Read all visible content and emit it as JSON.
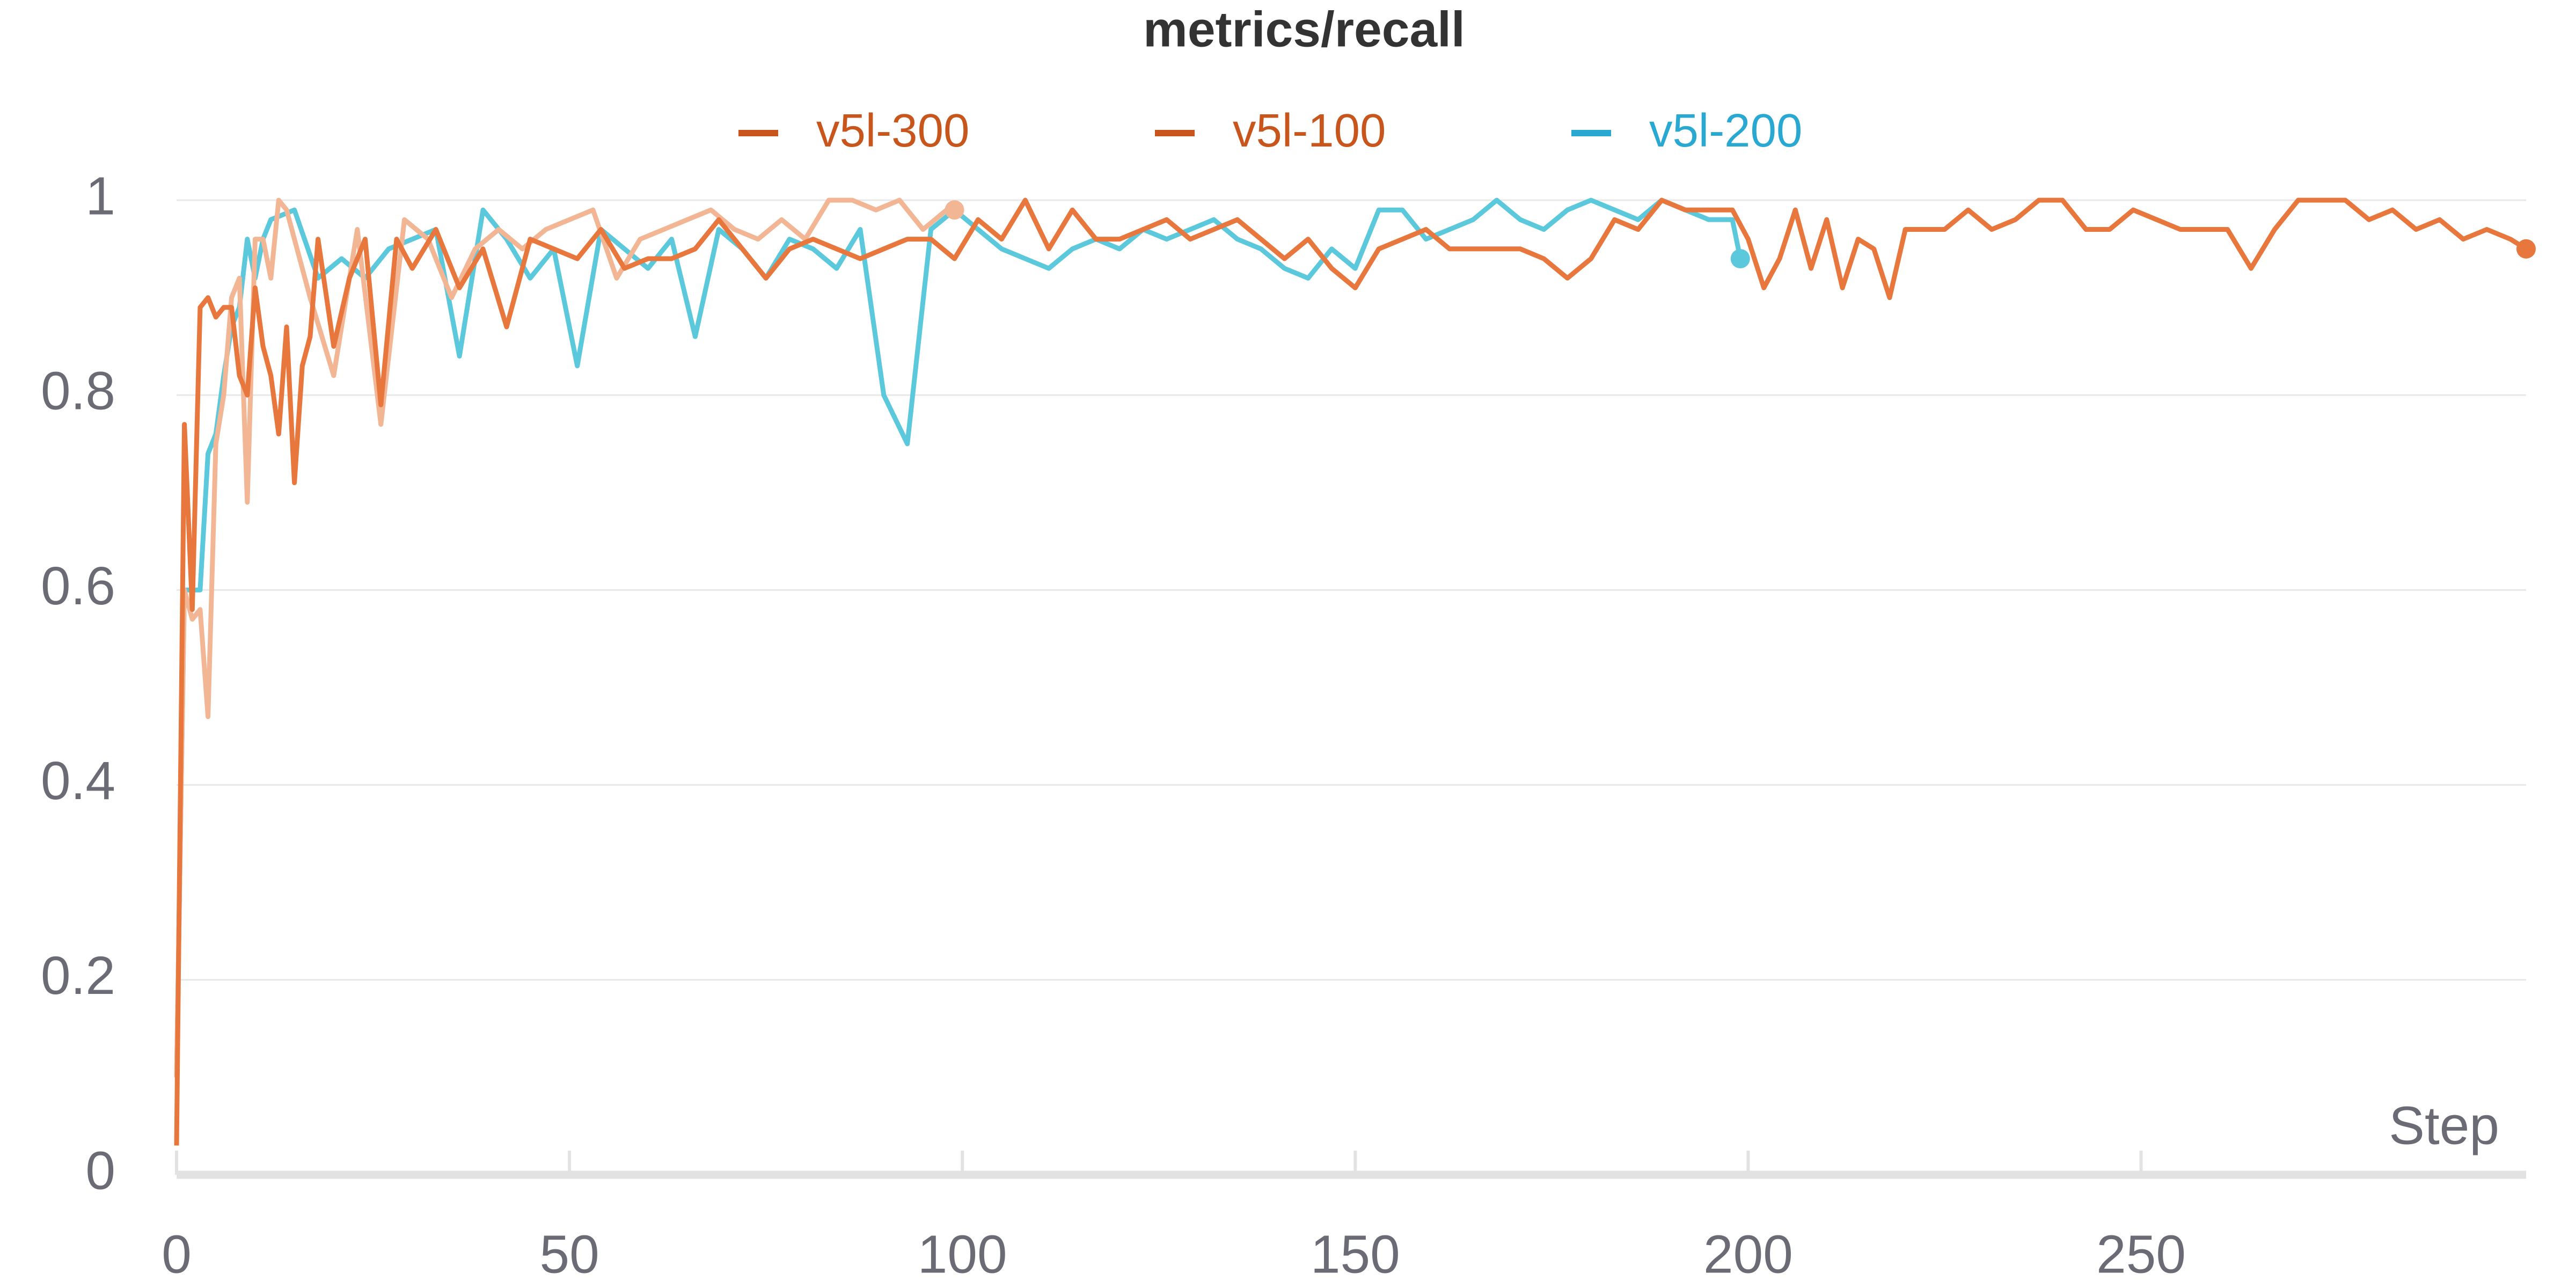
{
  "chart_data": {
    "type": "line",
    "title": "metrics/recall",
    "xlabel": "Step",
    "xlim": [
      0,
      299
    ],
    "ylim": [
      0,
      1
    ],
    "xticks": [
      0,
      50,
      100,
      150,
      200,
      250
    ],
    "yticks": [
      0,
      0.2,
      0.4,
      0.6,
      0.8,
      1
    ],
    "grid": true,
    "legend": "top",
    "series": [
      {
        "name": "v5l-300",
        "color": "#e8773e",
        "legend_color": "#c8561c",
        "x": [
          0,
          1,
          2,
          3,
          4,
          5,
          6,
          7,
          8,
          9,
          10,
          11,
          12,
          13,
          14,
          15,
          16,
          17,
          18,
          20,
          22,
          24,
          26,
          28,
          30,
          33,
          36,
          39,
          42,
          45,
          48,
          51,
          54,
          57,
          60,
          63,
          66,
          69,
          72,
          75,
          78,
          81,
          84,
          87,
          90,
          93,
          96,
          99,
          102,
          105,
          108,
          111,
          114,
          117,
          120,
          123,
          126,
          129,
          132,
          135,
          138,
          141,
          144,
          147,
          150,
          153,
          156,
          159,
          162,
          165,
          168,
          171,
          174,
          177,
          180,
          183,
          186,
          189,
          192,
          195,
          198,
          200,
          202,
          204,
          206,
          208,
          210,
          212,
          214,
          216,
          218,
          220,
          222,
          225,
          228,
          231,
          234,
          237,
          240,
          243,
          246,
          249,
          252,
          255,
          258,
          261,
          264,
          267,
          270,
          273,
          276,
          279,
          282,
          285,
          288,
          291,
          294,
          297,
          299
        ],
        "values": [
          0.03,
          0.77,
          0.58,
          0.89,
          0.9,
          0.88,
          0.89,
          0.89,
          0.82,
          0.8,
          0.91,
          0.85,
          0.82,
          0.76,
          0.87,
          0.71,
          0.83,
          0.86,
          0.96,
          0.85,
          0.92,
          0.96,
          0.79,
          0.96,
          0.93,
          0.97,
          0.91,
          0.95,
          0.87,
          0.96,
          0.95,
          0.94,
          0.97,
          0.93,
          0.94,
          0.94,
          0.95,
          0.98,
          0.95,
          0.92,
          0.95,
          0.96,
          0.95,
          0.94,
          0.95,
          0.96,
          0.96,
          0.94,
          0.98,
          0.96,
          1.0,
          0.95,
          0.99,
          0.96,
          0.96,
          0.97,
          0.98,
          0.96,
          0.97,
          0.98,
          0.96,
          0.94,
          0.96,
          0.93,
          0.91,
          0.95,
          0.96,
          0.97,
          0.95,
          0.95,
          0.95,
          0.95,
          0.94,
          0.92,
          0.94,
          0.98,
          0.97,
          1.0,
          0.99,
          0.99,
          0.99,
          0.96,
          0.91,
          0.94,
          0.99,
          0.93,
          0.98,
          0.91,
          0.96,
          0.95,
          0.9,
          0.97,
          0.97,
          0.97,
          0.99,
          0.97,
          0.98,
          1.0,
          1.0,
          0.97,
          0.97,
          0.99,
          0.98,
          0.97,
          0.97,
          0.97,
          0.93,
          0.97,
          1.0,
          1.0,
          1.0,
          0.98,
          0.99,
          0.97,
          0.98,
          0.96,
          0.97,
          0.96,
          0.95
        ]
      },
      {
        "name": "v5l-100",
        "color": "#f2b695",
        "legend_color": "#c8561c",
        "x": [
          0,
          1,
          2,
          3,
          4,
          5,
          6,
          7,
          8,
          9,
          10,
          11,
          12,
          13,
          14,
          17,
          20,
          23,
          26,
          29,
          32,
          35,
          38,
          41,
          44,
          47,
          50,
          53,
          56,
          59,
          62,
          65,
          68,
          71,
          74,
          77,
          80,
          83,
          86,
          89,
          92,
          95,
          98,
          99
        ],
        "values": [
          0.1,
          0.6,
          0.57,
          0.58,
          0.47,
          0.75,
          0.8,
          0.9,
          0.92,
          0.69,
          0.96,
          0.96,
          0.92,
          1.0,
          0.99,
          0.9,
          0.82,
          0.97,
          0.77,
          0.98,
          0.96,
          0.9,
          0.95,
          0.97,
          0.95,
          0.97,
          0.98,
          0.99,
          0.92,
          0.96,
          0.97,
          0.98,
          0.99,
          0.97,
          0.96,
          0.98,
          0.96,
          1.0,
          1.0,
          0.99,
          1.0,
          0.97,
          0.99,
          0.99
        ]
      },
      {
        "name": "v5l-200",
        "color": "#5bc8dc",
        "legend_color": "#29a9d2",
        "x": [
          0,
          1,
          2,
          3,
          4,
          5,
          6,
          7,
          8,
          9,
          10,
          11,
          12,
          15,
          18,
          21,
          24,
          27,
          30,
          33,
          36,
          39,
          42,
          45,
          48,
          51,
          54,
          57,
          60,
          63,
          66,
          69,
          72,
          75,
          78,
          81,
          84,
          87,
          90,
          93,
          96,
          99,
          102,
          105,
          108,
          111,
          114,
          117,
          120,
          123,
          126,
          129,
          132,
          135,
          138,
          141,
          144,
          147,
          150,
          153,
          156,
          159,
          162,
          165,
          168,
          171,
          174,
          177,
          180,
          183,
          186,
          189,
          192,
          195,
          198,
          199
        ],
        "values": [
          0.1,
          0.6,
          0.6,
          0.6,
          0.74,
          0.76,
          0.82,
          0.87,
          0.89,
          0.96,
          0.92,
          0.96,
          0.98,
          0.99,
          0.92,
          0.94,
          0.92,
          0.95,
          0.96,
          0.97,
          0.84,
          0.99,
          0.96,
          0.92,
          0.95,
          0.83,
          0.97,
          0.95,
          0.93,
          0.96,
          0.86,
          0.97,
          0.95,
          0.92,
          0.96,
          0.95,
          0.93,
          0.97,
          0.8,
          0.75,
          0.97,
          0.99,
          0.97,
          0.95,
          0.94,
          0.93,
          0.95,
          0.96,
          0.95,
          0.97,
          0.96,
          0.97,
          0.98,
          0.96,
          0.95,
          0.93,
          0.92,
          0.95,
          0.93,
          0.99,
          0.99,
          0.96,
          0.97,
          0.98,
          1.0,
          0.98,
          0.97,
          0.99,
          1.0,
          0.99,
          0.98,
          1.0,
          0.99,
          0.98,
          0.98,
          0.94
        ]
      }
    ]
  }
}
